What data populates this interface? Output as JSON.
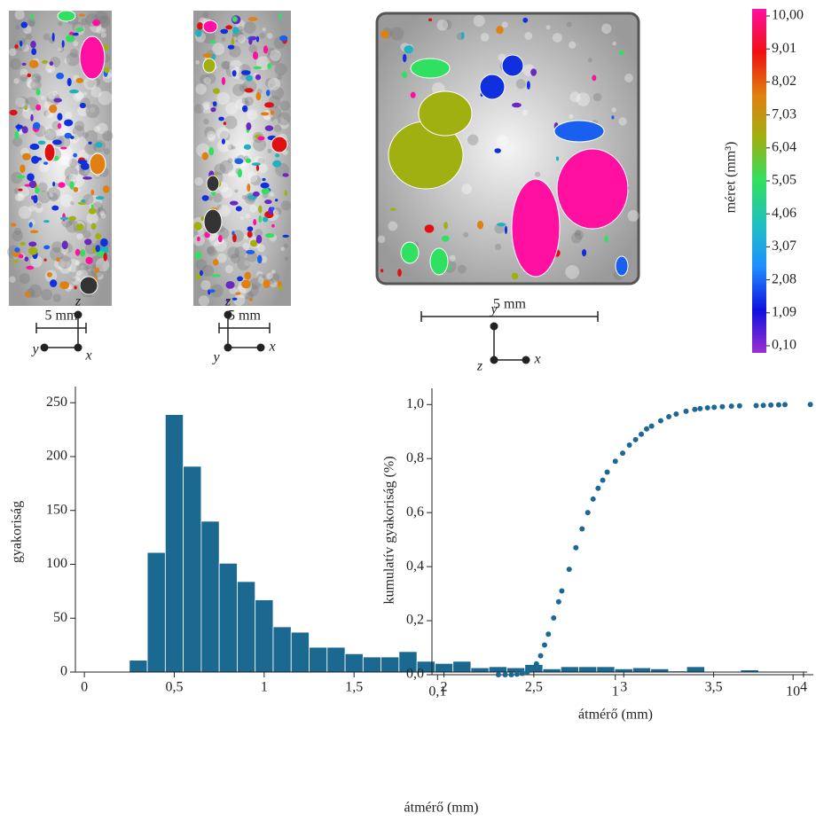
{
  "images": [
    {
      "scale": "5 mm",
      "axes": [
        "z",
        "y",
        "x"
      ]
    },
    {
      "scale": "5 mm",
      "axes": [
        "z",
        "y",
        "x"
      ]
    },
    {
      "scale": "5 mm",
      "axes": [
        "y",
        "z",
        "x"
      ]
    }
  ],
  "chart_data": [
    {
      "type": "colorbar",
      "label": "méret (mm³)",
      "ylim": [
        0.1,
        10
      ],
      "yticks": [
        {
          "value": 0.1,
          "label": "0,10"
        },
        {
          "value": 1.09,
          "label": "1,09"
        },
        {
          "value": 2.08,
          "label": "2,08"
        },
        {
          "value": 3.07,
          "label": "3,07"
        },
        {
          "value": 4.06,
          "label": "4,06"
        },
        {
          "value": 5.05,
          "label": "5,05"
        },
        {
          "value": 6.04,
          "label": "6,04"
        },
        {
          "value": 7.03,
          "label": "7,03"
        },
        {
          "value": 8.02,
          "label": "8,02"
        },
        {
          "value": 9.01,
          "label": "9,01"
        },
        {
          "value": 10,
          "label": "10,00"
        }
      ],
      "colors": [
        "#9b30d0",
        "#1010e0",
        "#1e90ff",
        "#20c0c0",
        "#30e060",
        "#a0b010",
        "#e08010",
        "#f01010",
        "#ff10a0"
      ]
    },
    {
      "type": "histogram",
      "xlabel": "átmérő (mm)",
      "ylabel": "gyakoriság",
      "color": "#1b6890",
      "bins": [
        0.25,
        0.35,
        0.45,
        0.55,
        0.65,
        0.75,
        0.85,
        0.95,
        1.05,
        1.15,
        1.25,
        1.35,
        1.45,
        1.55,
        1.65,
        1.75,
        1.85,
        1.95,
        2.05,
        2.15,
        2.25,
        2.35,
        2.45,
        2.55,
        2.65,
        2.75,
        2.85,
        2.95,
        3.05,
        3.15,
        3.25,
        3.35,
        3.45,
        3.55,
        3.65,
        3.75
      ],
      "values": [
        11,
        111,
        239,
        191,
        140,
        101,
        84,
        67,
        42,
        37,
        23,
        23,
        17,
        14,
        14,
        19,
        10,
        8,
        10,
        4,
        5,
        4,
        7,
        3,
        5,
        5,
        5,
        3,
        4,
        3,
        1,
        5,
        0,
        0,
        2
      ],
      "xlim": [
        -0.05,
        4.02
      ],
      "ylim": [
        0,
        265
      ],
      "xticks": [
        0,
        {
          "value": 0.5,
          "label": "0,5"
        },
        1,
        {
          "value": 1.5,
          "label": "1,5"
        },
        2,
        {
          "value": 2.5,
          "label": "2,5"
        },
        3,
        {
          "value": 3.5,
          "label": "3,5"
        },
        4
      ],
      "yticks": [
        0,
        50,
        100,
        150,
        200,
        250
      ]
    },
    {
      "type": "scatter",
      "xlabel": "átmérő (mm)",
      "ylabel": "kumulatív gyakoriság (%)",
      "color": "#1b6890",
      "xscale": "log",
      "x": [
        0.22,
        0.24,
        0.26,
        0.28,
        0.3,
        0.32,
        0.34,
        0.36,
        0.38,
        0.4,
        0.42,
        0.45,
        0.48,
        0.5,
        0.55,
        0.6,
        0.65,
        0.7,
        0.75,
        0.8,
        0.85,
        0.9,
        1.0,
        1.1,
        1.2,
        1.3,
        1.4,
        1.5,
        1.6,
        1.8,
        2.0,
        2.2,
        2.5,
        2.8,
        3.0,
        3.3,
        3.6,
        4.0,
        4.5,
        5.0,
        6.2,
        6.8,
        7.5,
        8.3,
        9.0,
        12.5
      ],
      "y": [
        0,
        0,
        0,
        0.002,
        0.005,
        0.01,
        0.02,
        0.04,
        0.07,
        0.11,
        0.15,
        0.21,
        0.27,
        0.31,
        0.39,
        0.47,
        0.54,
        0.6,
        0.65,
        0.69,
        0.72,
        0.75,
        0.79,
        0.82,
        0.85,
        0.87,
        0.89,
        0.91,
        0.92,
        0.94,
        0.955,
        0.965,
        0.975,
        0.982,
        0.985,
        0.988,
        0.99,
        0.992,
        0.994,
        0.995,
        0.996,
        0.997,
        0.998,
        0.999,
        0.9995,
        1.0
      ],
      "xlim": [
        0.093,
        13
      ],
      "ylim": [
        0,
        1.06
      ],
      "xticks": [
        {
          "value": 0.1,
          "label": "0,1"
        },
        1,
        10
      ],
      "yticks": [
        {
          "value": 0,
          "label": "0,0"
        },
        {
          "value": 0.2,
          "label": "0,2"
        },
        {
          "value": 0.4,
          "label": "0,4"
        },
        {
          "value": 0.6,
          "label": "0,6"
        },
        {
          "value": 0.8,
          "label": "0,8"
        },
        {
          "value": 1,
          "label": "1,0"
        }
      ]
    }
  ]
}
